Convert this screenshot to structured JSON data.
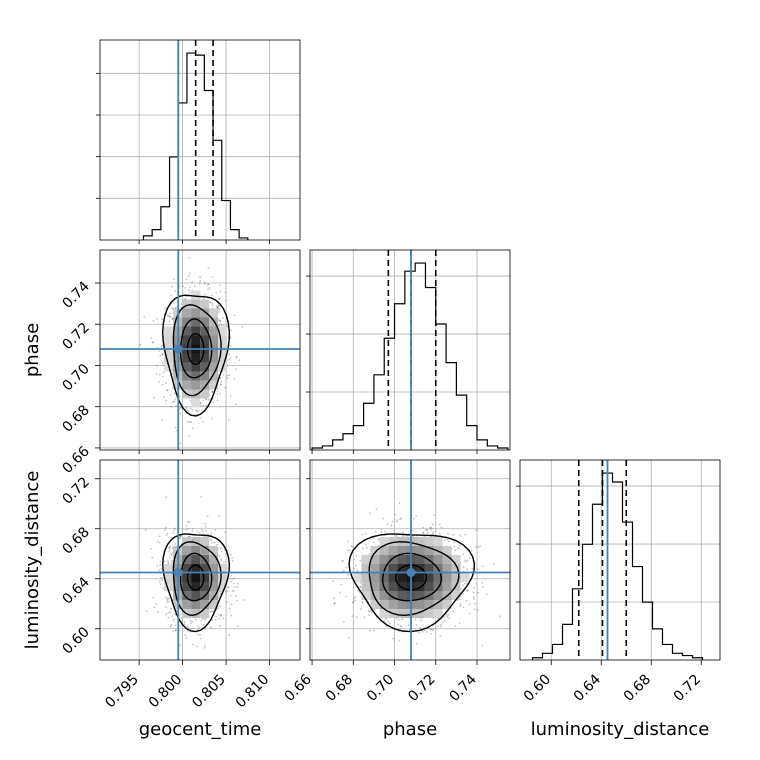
{
  "chart_data": {
    "type": "corner",
    "parameters": [
      "geocent_time",
      "phase",
      "luminosity_distance"
    ],
    "truths": {
      "geocent_time": 0.7995,
      "phase": 0.708,
      "luminosity_distance": 0.645
    },
    "truth_color": "#4682b4",
    "line_color": "#000000",
    "grid": true,
    "quantiles": {
      "geocent_time": [
        0.7995,
        0.8015,
        0.8035
      ],
      "phase": [
        0.697,
        0.708,
        0.72
      ],
      "luminosity_distance": [
        0.622,
        0.641,
        0.66
      ]
    },
    "ranges": {
      "geocent_time": [
        0.7905,
        0.8135
      ],
      "phase": [
        0.659,
        0.756
      ],
      "luminosity_distance": [
        0.575,
        0.735
      ]
    },
    "ticks": {
      "geocent_time": [
        "0.795",
        "0.800",
        "0.805",
        "0.810"
      ],
      "phase": [
        "0.66",
        "0.68",
        "0.70",
        "0.72",
        "0.74"
      ],
      "luminosity_distance": [
        "0.60",
        "0.64",
        "0.68",
        "0.72"
      ]
    },
    "x_labels": [
      "geocent_time",
      "phase",
      "luminosity_distance"
    ],
    "y_labels": [
      "phase",
      "luminosity_distance"
    ],
    "histograms": {
      "geocent_time": {
        "bin_edges": [
          0.7955,
          0.7965,
          0.7975,
          0.7985,
          0.7995,
          0.8005,
          0.8015,
          0.8025,
          0.8035,
          0.8045,
          0.8055,
          0.8065,
          0.8075
        ],
        "counts": [
          2,
          5,
          16,
          40,
          66,
          90,
          89,
          72,
          48,
          19,
          5,
          1
        ]
      },
      "phase": {
        "bin_edges": [
          0.66,
          0.665,
          0.67,
          0.675,
          0.68,
          0.685,
          0.69,
          0.695,
          0.7,
          0.705,
          0.71,
          0.715,
          0.72,
          0.725,
          0.73,
          0.735,
          0.74,
          0.745,
          0.75,
          0.755
        ],
        "counts": [
          1,
          2,
          5,
          8,
          12,
          23,
          37,
          55,
          72,
          88,
          92,
          80,
          62,
          43,
          27,
          12,
          5,
          2,
          1
        ]
      },
      "luminosity_distance": {
        "bin_edges": [
          0.585,
          0.593,
          0.601,
          0.609,
          0.617,
          0.625,
          0.633,
          0.641,
          0.649,
          0.657,
          0.665,
          0.673,
          0.681,
          0.689,
          0.697,
          0.705,
          0.713,
          0.721
        ],
        "counts": [
          1,
          3,
          7,
          16,
          32,
          52,
          70,
          84,
          80,
          62,
          42,
          26,
          14,
          7,
          3,
          2,
          1
        ]
      }
    }
  }
}
